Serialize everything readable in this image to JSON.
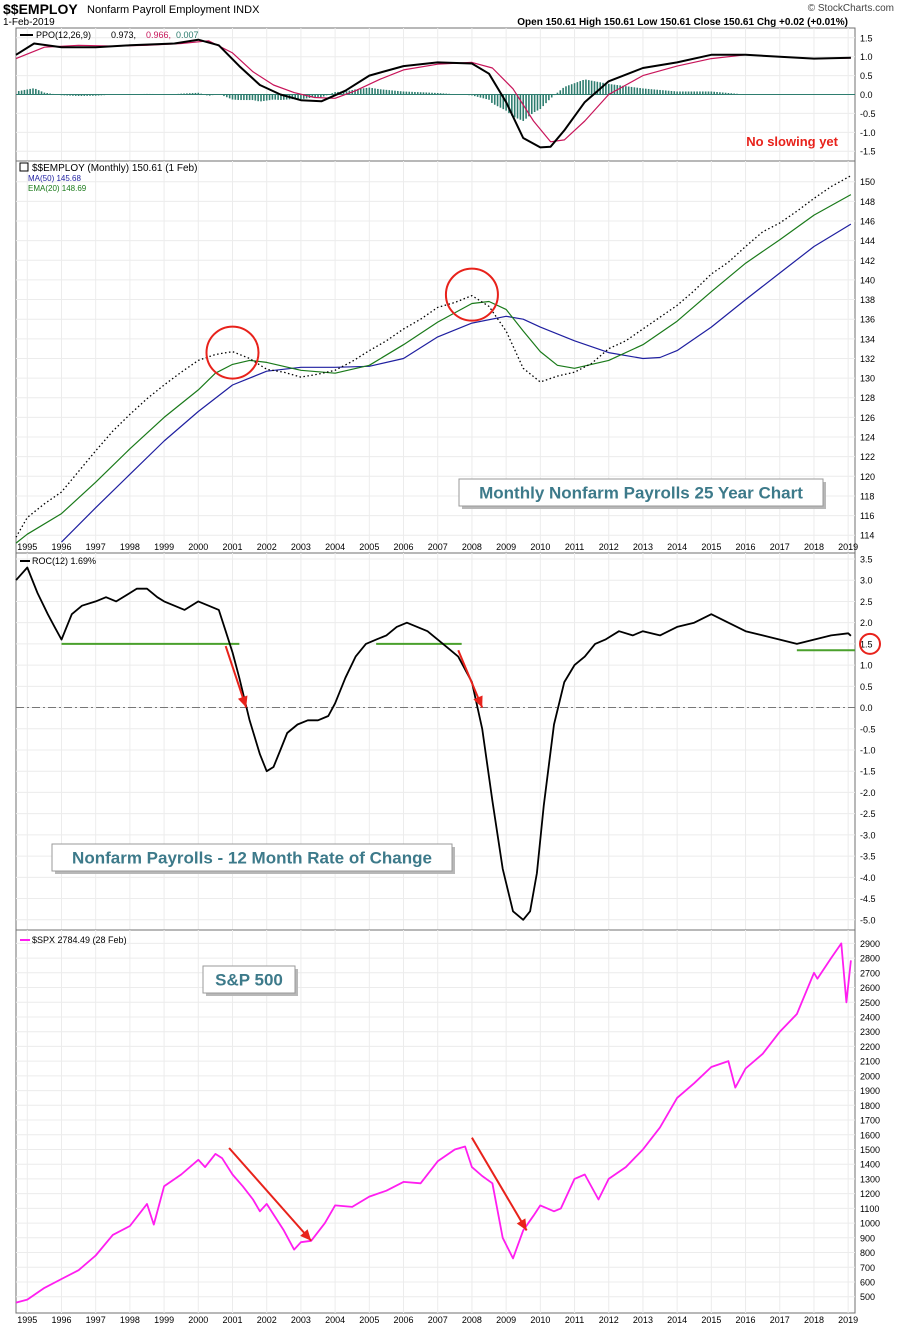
{
  "header": {
    "symbol": "$$EMPLOY",
    "name": "Nonfarm Payroll Employment",
    "exchange": "INDX",
    "date": "1-Feb-2019",
    "brand": "© StockCharts.com",
    "ohlc": "Open 150.61  High 150.61  Low 150.61  Close 150.61  Chg +0.02 (+0.01%)"
  },
  "colors": {
    "price": "#000000",
    "signal": "#c8155a",
    "histogram": "#2e7d6f",
    "ma50": "#1f1fa0",
    "ema20": "#1a7a1a",
    "support": "#4aa02c",
    "annotation": "#e8221b",
    "spx": "#ff1ef0",
    "titlebox": "#3d7a8a"
  },
  "chart_data": [
    {
      "type": "line",
      "panel": "ppo",
      "legend": {
        "prefix": "PPO(12,26,9)",
        "ppo": "0.973,",
        "signal": "0.966,",
        "hist": "0.007"
      },
      "annotation": "No slowing yet",
      "ylim": [
        -1.6,
        1.6
      ],
      "yticks": [
        1.5,
        1.0,
        0.5,
        0.0,
        -0.5,
        -1.0,
        -1.5
      ],
      "series": [
        {
          "name": "PPO",
          "x": [
            1994.67,
            1995.2,
            1996,
            1997,
            1998,
            1999.3,
            2000,
            2000.6,
            2001.2,
            2001.8,
            2002.4,
            2003,
            2003.6,
            2004.3,
            2005,
            2006,
            2007,
            2008,
            2008.5,
            2009,
            2009.5,
            2010,
            2010.3,
            2010.7,
            2011.3,
            2012,
            2013,
            2014,
            2015,
            2016,
            2017,
            2018,
            2019.08
          ],
          "y": [
            1.05,
            1.35,
            1.25,
            1.25,
            1.3,
            1.35,
            1.45,
            1.3,
            0.75,
            0.25,
            0.0,
            -0.15,
            -0.18,
            0.1,
            0.5,
            0.75,
            0.85,
            0.82,
            0.55,
            -0.2,
            -1.15,
            -1.4,
            -1.38,
            -0.95,
            -0.2,
            0.35,
            0.7,
            0.85,
            1.05,
            1.05,
            1.0,
            0.95,
            0.97
          ]
        },
        {
          "name": "Signal",
          "x": [
            1994.67,
            1995.5,
            1996.5,
            1997.5,
            1998.5,
            1999.5,
            2000.3,
            2001,
            2001.6,
            2002.2,
            2002.8,
            2003.4,
            2004,
            2004.6,
            2005.3,
            2006,
            2007,
            2008,
            2008.6,
            2009.2,
            2009.8,
            2010.3,
            2010.7,
            2011.3,
            2012,
            2013,
            2014,
            2015,
            2016,
            2017,
            2018,
            2019.08
          ],
          "y": [
            0.95,
            1.25,
            1.3,
            1.28,
            1.3,
            1.35,
            1.42,
            1.1,
            0.6,
            0.25,
            0.05,
            -0.08,
            -0.1,
            0.1,
            0.4,
            0.65,
            0.8,
            0.85,
            0.7,
            0.15,
            -0.7,
            -1.25,
            -1.2,
            -0.7,
            0.0,
            0.5,
            0.75,
            0.95,
            1.05,
            1.0,
            0.95,
            0.966
          ]
        }
      ]
    },
    {
      "type": "line",
      "panel": "price",
      "legend": {
        "main": "$$EMPLOY (Monthly) 150.61 (1 Feb)",
        "ma": "MA(50) 145.68",
        "ema": "EMA(20) 148.69"
      },
      "title": "Monthly Nonfarm Payrolls 25 Year Chart",
      "ylim": [
        112.8,
        151.5
      ],
      "yticks": [
        150,
        148,
        146,
        144,
        142,
        140,
        138,
        136,
        134,
        132,
        130,
        128,
        126,
        124,
        122,
        120,
        118,
        116,
        114
      ],
      "series": [
        {
          "name": "$$EMPLOY",
          "style": "dotted",
          "x": [
            1994.67,
            1995,
            1995.5,
            1996,
            1996.5,
            1997,
            1997.5,
            1998,
            1998.5,
            1999,
            1999.5,
            2000,
            2000.5,
            2001,
            2001.5,
            2002,
            2002.5,
            2003,
            2003.5,
            2004,
            2004.5,
            2005,
            2005.5,
            2006,
            2006.5,
            2007,
            2007.5,
            2008,
            2008.5,
            2009,
            2009.5,
            2010,
            2010.5,
            2011,
            2011.5,
            2012,
            2012.5,
            2013,
            2013.5,
            2014,
            2014.5,
            2015,
            2015.5,
            2016,
            2016.5,
            2017,
            2017.5,
            2018,
            2018.5,
            2019.08
          ],
          "y": [
            113.8,
            115.8,
            117.2,
            118.4,
            120.5,
            122.6,
            124.6,
            126.3,
            127.9,
            129.3,
            130.6,
            131.8,
            132.4,
            132.7,
            132.0,
            130.9,
            130.6,
            130.1,
            130.4,
            130.8,
            131.7,
            132.8,
            133.8,
            135.0,
            136.0,
            137.2,
            137.7,
            138.4,
            137.3,
            134.8,
            131.0,
            129.6,
            130.2,
            130.6,
            131.5,
            133.0,
            133.8,
            135.0,
            136.2,
            137.4,
            138.9,
            140.6,
            141.8,
            143.4,
            144.9,
            145.8,
            147.0,
            148.3,
            149.5,
            150.61
          ]
        },
        {
          "name": "MA(50)",
          "x": [
            1996,
            1997,
            1998,
            1999,
            2000,
            2001,
            2002,
            2003,
            2004,
            2005,
            2006,
            2007,
            2008,
            2009,
            2009.5,
            2010,
            2011,
            2012,
            2013,
            2013.5,
            2014,
            2015,
            2016,
            2017,
            2018,
            2019.08
          ],
          "y": [
            113.3,
            116.8,
            120.2,
            123.6,
            126.6,
            129.3,
            130.7,
            131.1,
            131.1,
            131.2,
            132.0,
            134.2,
            135.6,
            136.3,
            136.0,
            135.2,
            133.8,
            132.6,
            132.0,
            132.1,
            132.8,
            135.2,
            138.0,
            140.7,
            143.4,
            145.68
          ]
        },
        {
          "name": "EMA(20)",
          "x": [
            1994.67,
            1995,
            1996,
            1997,
            1998,
            1999,
            2000,
            2000.5,
            2001,
            2001.5,
            2002,
            2003,
            2004,
            2005,
            2006,
            2007,
            2008,
            2008.5,
            2009,
            2009.5,
            2010,
            2010.5,
            2011,
            2012,
            2013,
            2014,
            2015,
            2016,
            2017,
            2018,
            2019.08
          ],
          "y": [
            113.2,
            114.1,
            116.2,
            119.4,
            122.8,
            126.0,
            128.8,
            130.5,
            131.4,
            131.8,
            131.6,
            130.8,
            130.5,
            131.3,
            133.4,
            135.7,
            137.6,
            137.8,
            137.0,
            134.8,
            132.7,
            131.3,
            131.0,
            131.8,
            133.4,
            135.8,
            138.8,
            141.7,
            144.1,
            146.6,
            148.69
          ]
        }
      ],
      "circles": [
        {
          "x": 2001.0,
          "y": 132.6
        },
        {
          "x": 2008.0,
          "y": 138.5
        }
      ]
    },
    {
      "type": "line",
      "panel": "roc",
      "legend": "ROC(12) 1.69%",
      "title": "Nonfarm Payrolls - 12 Month Rate of Change",
      "ylim": [
        -5.1,
        3.5
      ],
      "yticks": [
        3.5,
        3.0,
        2.5,
        2.0,
        1.5,
        1.0,
        0.5,
        0.0,
        -0.5,
        -1.0,
        -1.5,
        -2.0,
        -2.5,
        -3.0,
        -3.5,
        -4.0,
        -4.5,
        -5.0
      ],
      "marked_value": "1.5",
      "series": [
        {
          "name": "ROC(12)",
          "x": [
            1994.67,
            1995.0,
            1995.3,
            1995.6,
            1995.8,
            1996.0,
            1996.3,
            1996.6,
            1997.0,
            1997.3,
            1997.6,
            1998.0,
            1998.2,
            1998.5,
            1998.8,
            1999.0,
            1999.3,
            1999.6,
            2000.0,
            2000.3,
            2000.6,
            2000.8,
            2001.0,
            2001.2,
            2001.5,
            2001.8,
            2002.0,
            2002.2,
            2002.4,
            2002.6,
            2002.9,
            2003.2,
            2003.5,
            2003.8,
            2004.0,
            2004.3,
            2004.6,
            2004.9,
            2005.2,
            2005.5,
            2005.8,
            2006.1,
            2006.4,
            2006.7,
            2007.0,
            2007.3,
            2007.6,
            2008.0,
            2008.3,
            2008.6,
            2008.9,
            2009.2,
            2009.5,
            2009.7,
            2009.9,
            2010.1,
            2010.4,
            2010.7,
            2011.0,
            2011.3,
            2011.6,
            2011.9,
            2012.3,
            2012.7,
            2013.0,
            2013.5,
            2014.0,
            2014.5,
            2015.0,
            2015.5,
            2016.0,
            2016.5,
            2017.0,
            2017.5,
            2018.0,
            2018.5,
            2019.0,
            2019.08
          ],
          "y": [
            3.0,
            3.3,
            2.7,
            2.2,
            1.9,
            1.6,
            2.2,
            2.4,
            2.5,
            2.6,
            2.5,
            2.7,
            2.8,
            2.8,
            2.6,
            2.5,
            2.4,
            2.3,
            2.5,
            2.4,
            2.3,
            1.8,
            1.3,
            0.7,
            -0.3,
            -1.1,
            -1.5,
            -1.4,
            -1.0,
            -0.6,
            -0.4,
            -0.3,
            -0.3,
            -0.2,
            0.1,
            0.7,
            1.2,
            1.5,
            1.6,
            1.7,
            1.9,
            2.0,
            1.9,
            1.8,
            1.6,
            1.4,
            1.2,
            0.6,
            -0.5,
            -2.2,
            -3.8,
            -4.8,
            -5.0,
            -4.8,
            -3.9,
            -2.3,
            -0.4,
            0.6,
            1.0,
            1.2,
            1.5,
            1.6,
            1.8,
            1.7,
            1.8,
            1.7,
            1.9,
            2.0,
            2.2,
            2.0,
            1.8,
            1.7,
            1.6,
            1.5,
            1.6,
            1.7,
            1.75,
            1.69
          ]
        }
      ],
      "support_lines": [
        {
          "x": [
            1996.0,
            2001.2
          ],
          "y": 1.5
        },
        {
          "x": 2005.2,
          "x2": 2007.7,
          "y": 1.5
        },
        {
          "x": [
            2017.5,
            2019.2
          ],
          "y": 1.35
        }
      ],
      "arrows": [
        {
          "from": [
            2000.8,
            1.45
          ],
          "to": [
            2001.4,
            0.0
          ]
        },
        {
          "from": [
            2007.6,
            1.35
          ],
          "to": [
            2008.3,
            0.0
          ]
        }
      ]
    },
    {
      "type": "line",
      "panel": "spx",
      "legend": "$SPX 2784.49 (28 Feb)",
      "title": "S&P 500",
      "ylim": [
        430,
        2950
      ],
      "yticks": [
        2900,
        2800,
        2700,
        2600,
        2500,
        2400,
        2300,
        2200,
        2100,
        2000,
        1900,
        1800,
        1700,
        1600,
        1500,
        1400,
        1300,
        1200,
        1100,
        1000,
        900,
        800,
        700,
        600,
        500
      ],
      "series": [
        {
          "name": "$SPX",
          "x": [
            1994.67,
            1995.0,
            1995.5,
            1996.0,
            1996.5,
            1997.0,
            1997.5,
            1998.0,
            1998.5,
            1998.7,
            1999.0,
            1999.5,
            2000.0,
            2000.2,
            2000.5,
            2000.7,
            2001.0,
            2001.3,
            2001.6,
            2001.8,
            2002.0,
            2002.5,
            2002.8,
            2003.0,
            2003.3,
            2003.7,
            2004.0,
            2004.5,
            2005.0,
            2005.5,
            2006.0,
            2006.5,
            2007.0,
            2007.5,
            2007.8,
            2008.0,
            2008.3,
            2008.6,
            2008.9,
            2009.2,
            2009.5,
            2009.8,
            2010.0,
            2010.4,
            2010.6,
            2011.0,
            2011.3,
            2011.7,
            2012.0,
            2012.5,
            2013.0,
            2013.5,
            2014.0,
            2014.5,
            2015.0,
            2015.5,
            2015.7,
            2016.0,
            2016.5,
            2017.0,
            2017.5,
            2018.0,
            2018.1,
            2018.5,
            2018.8,
            2018.95,
            2019.08
          ],
          "y": [
            460,
            480,
            560,
            620,
            680,
            780,
            920,
            980,
            1130,
            990,
            1250,
            1330,
            1430,
            1380,
            1470,
            1440,
            1330,
            1250,
            1160,
            1080,
            1130,
            950,
            820,
            870,
            880,
            1000,
            1120,
            1110,
            1180,
            1220,
            1280,
            1270,
            1420,
            1500,
            1520,
            1380,
            1320,
            1270,
            900,
            760,
            950,
            1050,
            1120,
            1080,
            1100,
            1300,
            1330,
            1160,
            1300,
            1380,
            1500,
            1650,
            1850,
            1950,
            2060,
            2100,
            1920,
            2050,
            2150,
            2300,
            2420,
            2700,
            2660,
            2800,
            2900,
            2500,
            2784
          ]
        }
      ],
      "arrows": [
        {
          "from": [
            2000.9,
            1510
          ],
          "to": [
            2003.3,
            880
          ]
        },
        {
          "from": [
            2008.0,
            1580
          ],
          "to": [
            2009.6,
            950
          ]
        }
      ]
    }
  ],
  "x_axis": {
    "labels": [
      "1995",
      "1996",
      "1997",
      "1998",
      "1999",
      "2000",
      "2001",
      "2002",
      "2003",
      "2004",
      "2005",
      "2006",
      "2007",
      "2008",
      "2009",
      "2010",
      "2011",
      "2012",
      "2013",
      "2014",
      "2015",
      "2016",
      "2017",
      "2018",
      "2019"
    ]
  }
}
